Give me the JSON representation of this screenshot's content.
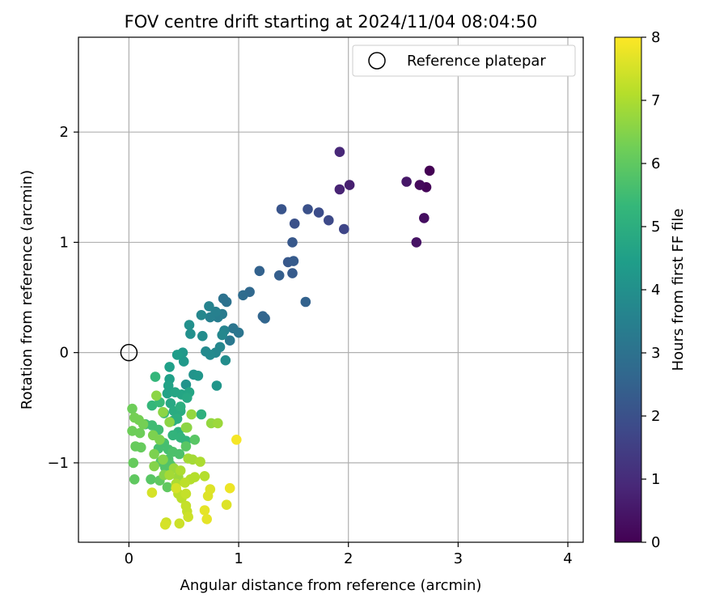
{
  "chart_data": {
    "type": "scatter",
    "title": "FOV centre drift starting at 2024/11/04 08:04:50",
    "xlabel": "Angular distance from reference (arcmin)",
    "ylabel": "Rotation from reference (arcmin)",
    "xlim": [
      -0.46,
      4.14
    ],
    "ylim": [
      -1.72,
      2.86
    ],
    "xticks": [
      0,
      1,
      2,
      3,
      4
    ],
    "yticks": [
      -1,
      0,
      1,
      2
    ],
    "xtick_labels": [
      "0",
      "1",
      "2",
      "3",
      "4"
    ],
    "ytick_labels": [
      "−1",
      "0",
      "1",
      "2"
    ],
    "grid": true,
    "legend": {
      "placement": "top-right",
      "entries": [
        "Reference platepar"
      ]
    },
    "reference_point": {
      "x": 0,
      "y": 0
    },
    "colorbar": {
      "label": "Hours from first FF file",
      "range": [
        0,
        8
      ],
      "ticks": [
        0,
        1,
        2,
        3,
        4,
        5,
        6,
        7,
        8
      ],
      "tick_labels": [
        "0",
        "1",
        "2",
        "3",
        "4",
        "5",
        "6",
        "7",
        "8"
      ],
      "colormap": "viridis",
      "colormap_stops": [
        "#440154",
        "#482878",
        "#3e4989",
        "#31688e",
        "#26828e",
        "#1f9e89",
        "#35b779",
        "#6ece58",
        "#b5de2b",
        "#fde725"
      ]
    },
    "points": [
      {
        "x": 2.74,
        "y": 1.65,
        "h": 0.0
      },
      {
        "x": 2.71,
        "y": 1.5,
        "h": 0.1
      },
      {
        "x": 2.65,
        "y": 1.52,
        "h": 0.2
      },
      {
        "x": 2.69,
        "y": 1.22,
        "h": 0.3
      },
      {
        "x": 2.62,
        "y": 1.0,
        "h": 0.4
      },
      {
        "x": 2.53,
        "y": 1.55,
        "h": 0.5
      },
      {
        "x": 2.01,
        "y": 1.52,
        "h": 0.7
      },
      {
        "x": 1.92,
        "y": 1.48,
        "h": 0.8
      },
      {
        "x": 1.92,
        "y": 1.82,
        "h": 0.9
      },
      {
        "x": 1.96,
        "y": 1.12,
        "h": 1.7
      },
      {
        "x": 1.82,
        "y": 1.2,
        "h": 1.8
      },
      {
        "x": 1.73,
        "y": 1.27,
        "h": 1.9
      },
      {
        "x": 1.63,
        "y": 1.3,
        "h": 2.0
      },
      {
        "x": 1.51,
        "y": 1.17,
        "h": 2.0
      },
      {
        "x": 1.39,
        "y": 1.3,
        "h": 2.1
      },
      {
        "x": 1.49,
        "y": 1.0,
        "h": 2.2
      },
      {
        "x": 1.45,
        "y": 0.82,
        "h": 2.2
      },
      {
        "x": 1.5,
        "y": 0.83,
        "h": 2.3
      },
      {
        "x": 1.49,
        "y": 0.72,
        "h": 2.3
      },
      {
        "x": 1.37,
        "y": 0.7,
        "h": 2.4
      },
      {
        "x": 1.19,
        "y": 0.74,
        "h": 2.5
      },
      {
        "x": 1.61,
        "y": 0.46,
        "h": 2.5
      },
      {
        "x": 1.24,
        "y": 0.31,
        "h": 2.6
      },
      {
        "x": 1.22,
        "y": 0.33,
        "h": 2.6
      },
      {
        "x": 1.1,
        "y": 0.55,
        "h": 2.7
      },
      {
        "x": 1.04,
        "y": 0.52,
        "h": 2.8
      },
      {
        "x": 0.89,
        "y": 0.46,
        "h": 3.0
      },
      {
        "x": 0.86,
        "y": 0.49,
        "h": 3.0
      },
      {
        "x": 1.0,
        "y": 0.18,
        "h": 3.1
      },
      {
        "x": 0.95,
        "y": 0.22,
        "h": 3.1
      },
      {
        "x": 0.92,
        "y": 0.11,
        "h": 3.2
      },
      {
        "x": 0.85,
        "y": 0.35,
        "h": 3.3
      },
      {
        "x": 0.81,
        "y": 0.32,
        "h": 3.4
      },
      {
        "x": 0.79,
        "y": 0.37,
        "h": 3.5
      },
      {
        "x": 0.74,
        "y": 0.32,
        "h": 3.5
      },
      {
        "x": 0.73,
        "y": 0.42,
        "h": 3.6
      },
      {
        "x": 0.66,
        "y": 0.34,
        "h": 3.7
      },
      {
        "x": 0.87,
        "y": 0.2,
        "h": 3.6
      },
      {
        "x": 0.85,
        "y": 0.16,
        "h": 3.7
      },
      {
        "x": 0.83,
        "y": 0.05,
        "h": 3.7
      },
      {
        "x": 0.79,
        "y": 0.0,
        "h": 3.7
      },
      {
        "x": 0.74,
        "y": -0.02,
        "h": 3.8
      },
      {
        "x": 0.7,
        "y": 0.01,
        "h": 3.8
      },
      {
        "x": 0.88,
        "y": -0.07,
        "h": 3.9
      },
      {
        "x": 0.67,
        "y": 0.15,
        "h": 3.9
      },
      {
        "x": 0.55,
        "y": 0.25,
        "h": 4.0
      },
      {
        "x": 0.56,
        "y": 0.17,
        "h": 4.0
      },
      {
        "x": 0.59,
        "y": -0.2,
        "h": 4.1
      },
      {
        "x": 0.52,
        "y": -0.29,
        "h": 4.1
      },
      {
        "x": 0.63,
        "y": -0.21,
        "h": 4.2
      },
      {
        "x": 0.8,
        "y": -0.3,
        "h": 4.2
      },
      {
        "x": 0.5,
        "y": -0.08,
        "h": 4.3
      },
      {
        "x": 0.49,
        "y": 0.0,
        "h": 4.3
      },
      {
        "x": 0.44,
        "y": -0.02,
        "h": 4.4
      },
      {
        "x": 0.37,
        "y": -0.13,
        "h": 4.5
      },
      {
        "x": 0.37,
        "y": -0.24,
        "h": 4.5
      },
      {
        "x": 0.36,
        "y": -0.3,
        "h": 4.6
      },
      {
        "x": 0.35,
        "y": -0.37,
        "h": 4.6
      },
      {
        "x": 0.42,
        "y": -0.36,
        "h": 4.7
      },
      {
        "x": 0.48,
        "y": -0.38,
        "h": 4.7
      },
      {
        "x": 0.55,
        "y": -0.36,
        "h": 4.7
      },
      {
        "x": 0.53,
        "y": -0.41,
        "h": 4.8
      },
      {
        "x": 0.38,
        "y": -0.46,
        "h": 4.8
      },
      {
        "x": 0.41,
        "y": -0.53,
        "h": 4.9
      },
      {
        "x": 0.47,
        "y": -0.53,
        "h": 4.9
      },
      {
        "x": 0.44,
        "y": -0.6,
        "h": 5.0
      },
      {
        "x": 0.4,
        "y": -0.62,
        "h": 5.0
      },
      {
        "x": 0.47,
        "y": -0.49,
        "h": 5.0
      },
      {
        "x": 0.66,
        "y": -0.56,
        "h": 5.1
      },
      {
        "x": 0.45,
        "y": -0.72,
        "h": 5.1
      },
      {
        "x": 0.4,
        "y": -0.75,
        "h": 5.2
      },
      {
        "x": 0.47,
        "y": -0.77,
        "h": 5.2
      },
      {
        "x": 0.52,
        "y": -0.8,
        "h": 5.2
      },
      {
        "x": 0.24,
        "y": -0.22,
        "h": 5.3
      },
      {
        "x": 0.21,
        "y": -0.48,
        "h": 5.3
      },
      {
        "x": 0.28,
        "y": -0.45,
        "h": 5.4
      },
      {
        "x": 0.32,
        "y": -0.55,
        "h": 5.4
      },
      {
        "x": 0.15,
        "y": -0.65,
        "h": 5.5
      },
      {
        "x": 0.21,
        "y": -0.66,
        "h": 5.5
      },
      {
        "x": 0.27,
        "y": -0.7,
        "h": 5.5
      },
      {
        "x": 0.32,
        "y": -0.82,
        "h": 5.6
      },
      {
        "x": 0.27,
        "y": -0.87,
        "h": 5.6
      },
      {
        "x": 0.36,
        "y": -0.88,
        "h": 5.6
      },
      {
        "x": 0.4,
        "y": -0.9,
        "h": 5.7
      },
      {
        "x": 0.46,
        "y": -0.92,
        "h": 5.7
      },
      {
        "x": 0.36,
        "y": -0.97,
        "h": 5.7
      },
      {
        "x": 0.29,
        "y": -0.99,
        "h": 5.8
      },
      {
        "x": 0.33,
        "y": -1.04,
        "h": 5.8
      },
      {
        "x": 0.38,
        "y": -1.02,
        "h": 5.8
      },
      {
        "x": 0.6,
        "y": -0.79,
        "h": 5.9
      },
      {
        "x": 0.52,
        "y": -0.85,
        "h": 5.9
      },
      {
        "x": 0.2,
        "y": -1.15,
        "h": 5.9
      },
      {
        "x": 0.28,
        "y": -1.16,
        "h": 6.0
      },
      {
        "x": 0.35,
        "y": -1.22,
        "h": 6.0
      },
      {
        "x": 0.05,
        "y": -1.15,
        "h": 6.0
      },
      {
        "x": 0.04,
        "y": -1.0,
        "h": 6.1
      },
      {
        "x": 0.06,
        "y": -0.85,
        "h": 6.1
      },
      {
        "x": 0.11,
        "y": -0.86,
        "h": 6.1
      },
      {
        "x": 0.03,
        "y": -0.71,
        "h": 6.2
      },
      {
        "x": 0.1,
        "y": -0.73,
        "h": 6.2
      },
      {
        "x": 0.03,
        "y": -0.51,
        "h": 6.2
      },
      {
        "x": 0.05,
        "y": -0.59,
        "h": 6.3
      },
      {
        "x": 0.09,
        "y": -0.61,
        "h": 6.3
      },
      {
        "x": 0.13,
        "y": -0.65,
        "h": 6.3
      },
      {
        "x": 0.22,
        "y": -0.75,
        "h": 6.4
      },
      {
        "x": 0.28,
        "y": -0.79,
        "h": 6.4
      },
      {
        "x": 0.23,
        "y": -0.92,
        "h": 6.4
      },
      {
        "x": 0.31,
        "y": -0.97,
        "h": 6.5
      },
      {
        "x": 0.23,
        "y": -1.03,
        "h": 6.5
      },
      {
        "x": 0.32,
        "y": -1.11,
        "h": 6.5
      },
      {
        "x": 0.37,
        "y": -0.63,
        "h": 6.6
      },
      {
        "x": 0.31,
        "y": -0.54,
        "h": 6.6
      },
      {
        "x": 0.25,
        "y": -0.39,
        "h": 6.6
      },
      {
        "x": 0.57,
        "y": -0.56,
        "h": 6.7
      },
      {
        "x": 0.52,
        "y": -0.68,
        "h": 6.7
      },
      {
        "x": 0.75,
        "y": -0.64,
        "h": 6.7
      },
      {
        "x": 0.81,
        "y": -0.64,
        "h": 6.8
      },
      {
        "x": 0.41,
        "y": -1.05,
        "h": 6.8
      },
      {
        "x": 0.45,
        "y": -1.13,
        "h": 6.8
      },
      {
        "x": 0.37,
        "y": -1.11,
        "h": 6.9
      },
      {
        "x": 0.54,
        "y": -0.96,
        "h": 6.9
      },
      {
        "x": 0.58,
        "y": -0.97,
        "h": 6.9
      },
      {
        "x": 0.65,
        "y": -0.99,
        "h": 7.0
      },
      {
        "x": 0.47,
        "y": -1.07,
        "h": 7.0
      },
      {
        "x": 0.43,
        "y": -1.19,
        "h": 7.0
      },
      {
        "x": 0.56,
        "y": -1.15,
        "h": 7.1
      },
      {
        "x": 0.6,
        "y": -1.13,
        "h": 7.1
      },
      {
        "x": 0.69,
        "y": -1.12,
        "h": 7.1
      },
      {
        "x": 0.51,
        "y": -1.18,
        "h": 7.2
      },
      {
        "x": 0.48,
        "y": -1.32,
        "h": 7.2
      },
      {
        "x": 0.45,
        "y": -1.28,
        "h": 7.2
      },
      {
        "x": 0.52,
        "y": -1.28,
        "h": 7.3
      },
      {
        "x": 0.52,
        "y": -1.39,
        "h": 7.3
      },
      {
        "x": 0.53,
        "y": -1.44,
        "h": 7.3
      },
      {
        "x": 0.54,
        "y": -1.49,
        "h": 7.4
      },
      {
        "x": 0.46,
        "y": -1.55,
        "h": 7.4
      },
      {
        "x": 0.34,
        "y": -1.54,
        "h": 7.4
      },
      {
        "x": 0.33,
        "y": -1.56,
        "h": 7.5
      },
      {
        "x": 0.21,
        "y": -1.27,
        "h": 7.5
      },
      {
        "x": 0.43,
        "y": -1.23,
        "h": 7.5
      },
      {
        "x": 0.72,
        "y": -1.3,
        "h": 7.6
      },
      {
        "x": 0.74,
        "y": -1.24,
        "h": 7.6
      },
      {
        "x": 0.89,
        "y": -1.38,
        "h": 7.6
      },
      {
        "x": 0.69,
        "y": -1.43,
        "h": 7.7
      },
      {
        "x": 0.71,
        "y": -1.51,
        "h": 7.7
      },
      {
        "x": 0.92,
        "y": -1.23,
        "h": 7.8
      },
      {
        "x": 0.98,
        "y": -0.79,
        "h": 7.9
      },
      {
        "x": 0.53,
        "y": -0.68,
        "h": 6.6
      }
    ]
  }
}
